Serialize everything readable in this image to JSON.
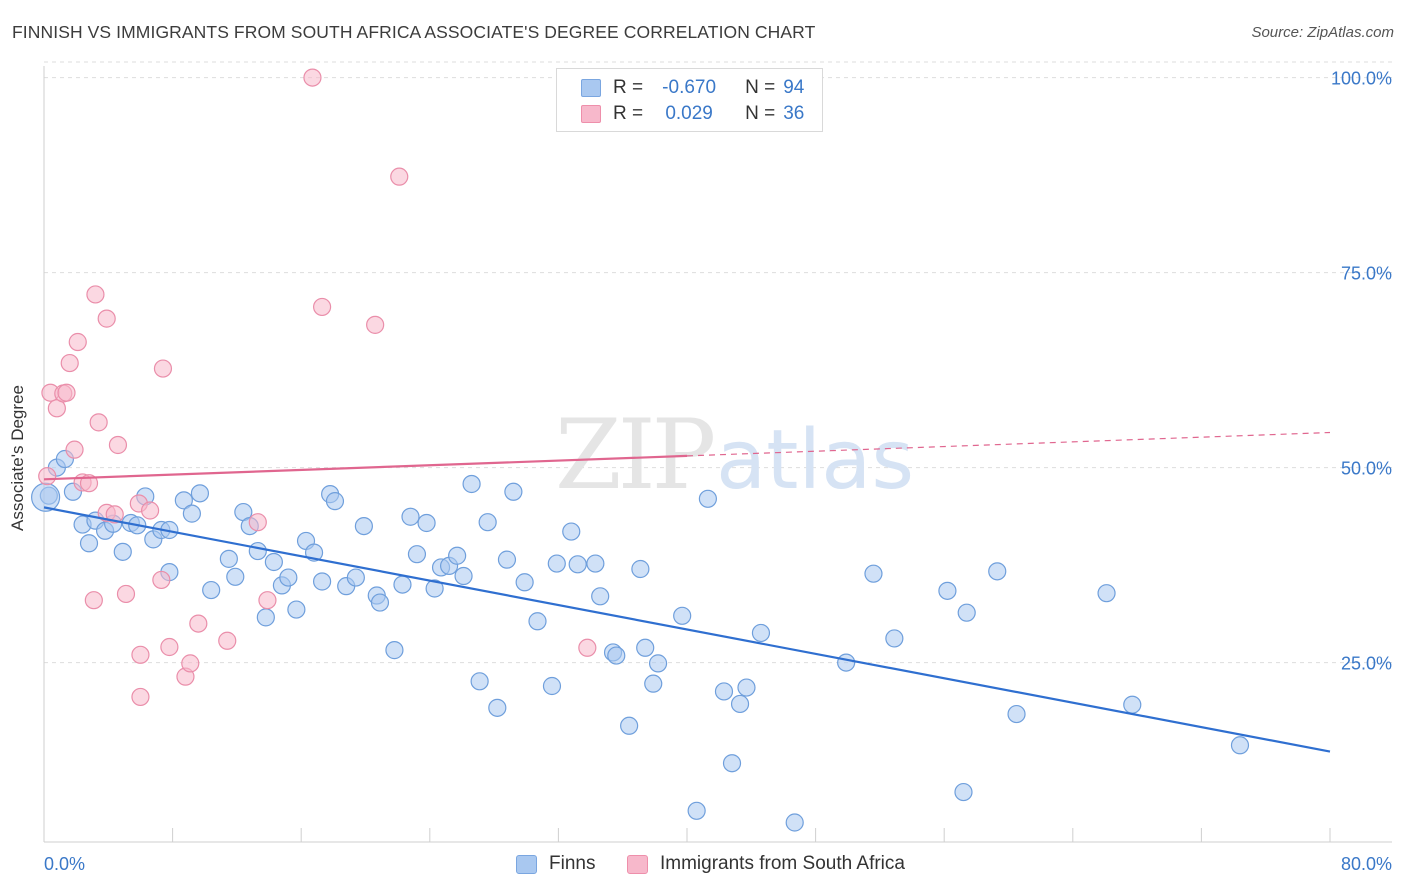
{
  "title": "FINNISH VS IMMIGRANTS FROM SOUTH AFRICA ASSOCIATE'S DEGREE CORRELATION CHART",
  "source": "Source: ZipAtlas.com",
  "watermark": {
    "zip": "ZIP",
    "atlas": "atlas"
  },
  "legend": {
    "r_label": "R =",
    "n_label": "N =",
    "rows": [
      {
        "r": "-0.670",
        "n": "94",
        "color": "#a9c8f0",
        "border": "#7aa6e0"
      },
      {
        "r": "0.029",
        "n": "36",
        "color": "#f7b8cb",
        "border": "#ee8fab"
      }
    ]
  },
  "bottom_legend": [
    "Finns",
    "Immigrants from South Africa"
  ],
  "chart_data": {
    "type": "scatter",
    "title": "FINNISH VS IMMIGRANTS FROM SOUTH AFRICA ASSOCIATE'S DEGREE CORRELATION CHART",
    "xlabel": "",
    "ylabel": "Associate's Degree",
    "xlim": [
      0,
      80
    ],
    "ylim": [
      2,
      102
    ],
    "x_tick_labels": [
      "0.0%",
      "80.0%"
    ],
    "y_ticks": [
      25,
      50,
      75,
      100
    ],
    "y_tick_labels": [
      "25.0%",
      "50.0%",
      "75.0%",
      "100.0%"
    ],
    "grid": "horizontal dashed",
    "series": [
      {
        "name": "Finns",
        "color": "#a9c8f0",
        "stroke": "#6f9fdc",
        "trend": {
          "x": [
            0,
            80
          ],
          "y": [
            44.9,
            13.6
          ],
          "color": "#2f6fd0",
          "dashed_from": null
        },
        "points": [
          [
            0.3,
            46.4
          ],
          [
            0.8,
            50.0
          ],
          [
            1.3,
            51.1
          ],
          [
            1.8,
            46.9
          ],
          [
            2.4,
            42.7
          ],
          [
            2.8,
            40.3
          ],
          [
            3.2,
            43.2
          ],
          [
            3.8,
            41.9
          ],
          [
            4.3,
            42.8
          ],
          [
            4.9,
            39.2
          ],
          [
            5.4,
            42.9
          ],
          [
            5.8,
            42.6
          ],
          [
            6.3,
            46.3
          ],
          [
            6.8,
            40.8
          ],
          [
            7.3,
            42.0
          ],
          [
            7.8,
            42.0
          ],
          [
            7.8,
            36.6
          ],
          [
            8.7,
            45.8
          ],
          [
            9.2,
            44.1
          ],
          [
            9.7,
            46.7
          ],
          [
            10.4,
            34.3
          ],
          [
            11.5,
            38.3
          ],
          [
            11.9,
            36.0
          ],
          [
            12.4,
            44.3
          ],
          [
            12.8,
            42.5
          ],
          [
            13.3,
            39.3
          ],
          [
            13.8,
            30.8
          ],
          [
            14.3,
            37.9
          ],
          [
            14.8,
            34.9
          ],
          [
            15.2,
            35.9
          ],
          [
            15.7,
            31.8
          ],
          [
            16.3,
            40.6
          ],
          [
            16.8,
            39.1
          ],
          [
            17.3,
            35.4
          ],
          [
            17.8,
            46.6
          ],
          [
            18.1,
            45.7
          ],
          [
            18.8,
            34.8
          ],
          [
            19.4,
            35.9
          ],
          [
            19.9,
            42.5
          ],
          [
            20.7,
            33.6
          ],
          [
            20.9,
            32.7
          ],
          [
            21.8,
            26.6
          ],
          [
            22.3,
            35.0
          ],
          [
            22.8,
            43.7
          ],
          [
            23.2,
            38.9
          ],
          [
            23.8,
            42.9
          ],
          [
            24.3,
            34.5
          ],
          [
            24.7,
            37.2
          ],
          [
            25.2,
            37.4
          ],
          [
            25.7,
            38.7
          ],
          [
            26.1,
            36.1
          ],
          [
            26.6,
            47.9
          ],
          [
            27.1,
            22.6
          ],
          [
            27.6,
            43.0
          ],
          [
            28.2,
            19.2
          ],
          [
            28.8,
            38.2
          ],
          [
            29.2,
            46.9
          ],
          [
            29.9,
            35.3
          ],
          [
            30.7,
            30.3
          ],
          [
            31.6,
            22.0
          ],
          [
            31.9,
            37.7
          ],
          [
            32.8,
            41.8
          ],
          [
            33.2,
            37.6
          ],
          [
            34.3,
            37.7
          ],
          [
            34.6,
            33.5
          ],
          [
            35.4,
            26.3
          ],
          [
            35.6,
            25.9
          ],
          [
            36.4,
            16.9
          ],
          [
            37.1,
            37.0
          ],
          [
            37.4,
            26.9
          ],
          [
            37.9,
            22.3
          ],
          [
            38.2,
            24.9
          ],
          [
            39.7,
            31.0
          ],
          [
            40.6,
            6.0
          ],
          [
            41.3,
            46.0
          ],
          [
            42.3,
            21.3
          ],
          [
            42.8,
            12.1
          ],
          [
            43.3,
            19.7
          ],
          [
            43.7,
            21.8
          ],
          [
            44.6,
            28.8
          ],
          [
            46.7,
            4.5
          ],
          [
            49.9,
            25.0
          ],
          [
            51.6,
            36.4
          ],
          [
            52.9,
            28.1
          ],
          [
            56.2,
            34.2
          ],
          [
            57.2,
            8.4
          ],
          [
            57.4,
            31.4
          ],
          [
            59.3,
            36.7
          ],
          [
            60.5,
            18.4
          ],
          [
            66.1,
            33.9
          ],
          [
            67.7,
            19.6
          ],
          [
            74.4,
            14.4
          ]
        ],
        "big_point": [
          0.1,
          46.2
        ]
      },
      {
        "name": "Immigrants from South Africa",
        "color": "#f7b8cb",
        "stroke": "#ea8eaa",
        "trend": {
          "x": [
            0,
            80
          ],
          "y": [
            48.5,
            54.5
          ],
          "color": "#e0668f",
          "dashed_from": 40
        },
        "points": [
          [
            0.2,
            48.9
          ],
          [
            0.4,
            59.6
          ],
          [
            0.8,
            57.6
          ],
          [
            1.2,
            59.5
          ],
          [
            1.4,
            59.6
          ],
          [
            1.6,
            63.4
          ],
          [
            1.9,
            52.3
          ],
          [
            2.1,
            66.1
          ],
          [
            2.4,
            48.1
          ],
          [
            2.8,
            48.0
          ],
          [
            3.1,
            33.0
          ],
          [
            3.2,
            72.2
          ],
          [
            3.4,
            55.8
          ],
          [
            3.9,
            44.2
          ],
          [
            3.9,
            69.1
          ],
          [
            4.4,
            44.0
          ],
          [
            4.6,
            52.9
          ],
          [
            5.1,
            33.8
          ],
          [
            5.9,
            45.4
          ],
          [
            6.0,
            26.0
          ],
          [
            6.0,
            20.6
          ],
          [
            6.6,
            44.5
          ],
          [
            7.3,
            35.6
          ],
          [
            7.4,
            62.7
          ],
          [
            7.8,
            27.0
          ],
          [
            8.8,
            23.2
          ],
          [
            9.1,
            24.9
          ],
          [
            9.6,
            30.0
          ],
          [
            11.4,
            27.8
          ],
          [
            13.3,
            43.0
          ],
          [
            13.9,
            33.0
          ],
          [
            16.7,
            100.0
          ],
          [
            17.3,
            70.6
          ],
          [
            20.6,
            68.3
          ],
          [
            22.1,
            87.3
          ],
          [
            33.8,
            26.9
          ]
        ]
      }
    ]
  }
}
